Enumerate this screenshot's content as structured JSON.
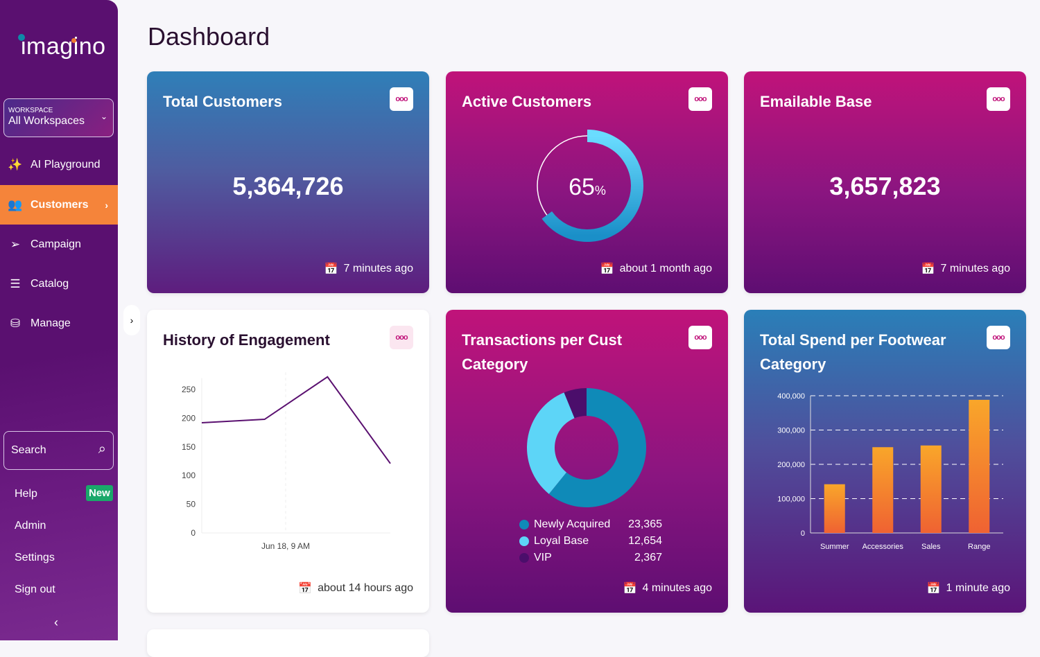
{
  "sidebar": {
    "logo": "imagino",
    "workspace": {
      "label": "WORKSPACE",
      "value": "All Workspaces"
    },
    "items": [
      {
        "label": "AI Playground",
        "icon": "magic-wand-icon"
      },
      {
        "label": "Customers",
        "icon": "users-icon",
        "active": true
      },
      {
        "label": "Campaign",
        "icon": "paper-plane-icon"
      },
      {
        "label": "Catalog",
        "icon": "catalog-icon"
      },
      {
        "label": "Manage",
        "icon": "hand-database-icon"
      }
    ],
    "search": "Search",
    "links": [
      "Help",
      "Admin",
      "Settings",
      "Sign out"
    ],
    "help_badge": "New"
  },
  "page": {
    "title": "Dashboard"
  },
  "cards": {
    "total_customers": {
      "title": "Total Customers",
      "value": "5,364,726",
      "updated": "7 minutes ago"
    },
    "active_customers": {
      "title": "Active Customers",
      "percent": 65,
      "value": "65",
      "unit": "%",
      "updated": "about 1 month ago"
    },
    "emailable_base": {
      "title": "Emailable Base",
      "value": "3,657,823",
      "updated": "7 minutes ago"
    },
    "history": {
      "title": "History of Engagement",
      "updated": "about 14 hours ago"
    },
    "transactions": {
      "title": "Transactions per Cust Category",
      "updated": "4 minutes ago"
    },
    "spend": {
      "title": "Total Spend per Footwear Category",
      "updated": "1 minute ago"
    }
  },
  "colors": {
    "accent": "#f5843a",
    "sidebar": "#5a1070",
    "newly": "#0f8ab8",
    "loyal": "#5dd5f7",
    "vip": "#4b0e6b",
    "line": "#5a1070"
  },
  "chart_data": [
    {
      "type": "line",
      "x_ticks": [
        "Jun 18, 9 AM"
      ],
      "y_ticks": [
        0,
        50,
        100,
        150,
        200,
        250
      ],
      "ylim": [
        0,
        250
      ],
      "values": [
        192,
        198,
        272,
        121
      ],
      "grid": "vertical-dashed"
    },
    {
      "type": "pie",
      "series": [
        {
          "name": "Newly Acquired",
          "value": 23365,
          "label": "23,365"
        },
        {
          "name": "Loyal Base",
          "value": 12654,
          "label": "12,654"
        },
        {
          "name": "VIP",
          "value": 2367,
          "label": "2,367"
        }
      ]
    },
    {
      "type": "bar",
      "categories": [
        "Summer",
        "Accessories",
        "Sales",
        "Range"
      ],
      "values": [
        142000,
        250000,
        255000,
        388000
      ],
      "ylim": [
        0,
        400000
      ],
      "y_ticks": [
        "0",
        "100,000",
        "200,000",
        "300,000",
        "400,000"
      ],
      "grid": "horizontal-dashed"
    }
  ]
}
